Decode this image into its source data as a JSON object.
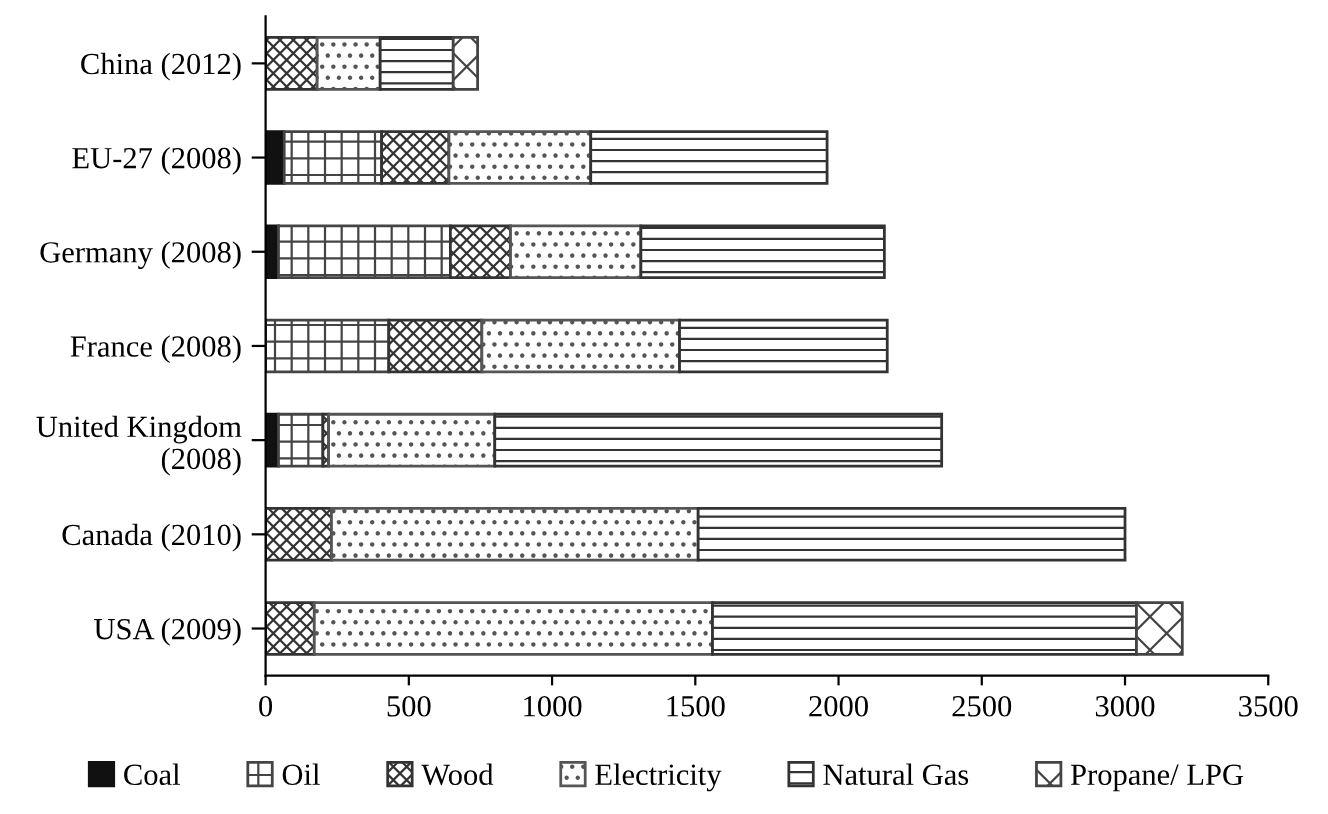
{
  "chart_data": {
    "type": "bar",
    "orientation": "horizontal",
    "stacked": true,
    "categories": [
      "China (2012)",
      "EU-27 (2008)",
      "Germany (2008)",
      "France (2008)",
      "United Kingdom\n(2008)",
      "Canada (2010)",
      "USA (2009)"
    ],
    "series": [
      {
        "name": "Coal",
        "color": "#111111",
        "values": [
          null,
          65,
          45,
          null,
          45,
          null,
          null
        ]
      },
      {
        "name": "Oil",
        "color": "#444444",
        "values": [
          null,
          340,
          600,
          430,
          155,
          null,
          null
        ]
      },
      {
        "name": "Wood",
        "color": "#333333",
        "values": [
          180,
          235,
          210,
          325,
          20,
          230,
          170
        ]
      },
      {
        "name": "Electricity",
        "color": "#555555",
        "values": [
          220,
          495,
          455,
          690,
          580,
          1280,
          1390
        ]
      },
      {
        "name": "Natural Gas",
        "color": "#333333",
        "values": [
          255,
          825,
          850,
          725,
          1560,
          1490,
          1480
        ]
      },
      {
        "name": "Propane/ LPG",
        "color": "#444444",
        "values": [
          85,
          null,
          null,
          null,
          null,
          null,
          160
        ]
      }
    ],
    "xlim": [
      0,
      3500
    ],
    "xticks": [
      0,
      500,
      1000,
      1500,
      2000,
      2500,
      3000,
      3500
    ],
    "grid": false,
    "legend": "bottom"
  }
}
